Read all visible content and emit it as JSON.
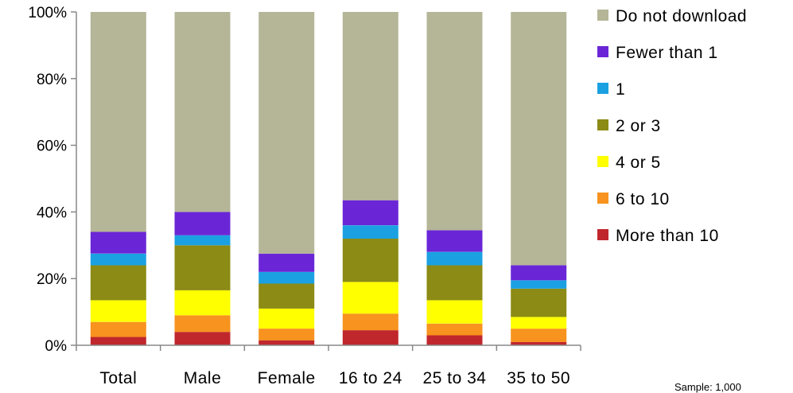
{
  "chart_data": {
    "type": "bar",
    "stacked": true,
    "percent": true,
    "categories": [
      "Total",
      "Male",
      "Female",
      "16 to 24",
      "25 to 34",
      "35 to 50"
    ],
    "y_ticks": [
      "0%",
      "20%",
      "40%",
      "60%",
      "80%",
      "100%"
    ],
    "ylim": [
      0,
      100
    ],
    "legend_position": "right",
    "series": [
      {
        "name": "More than 10",
        "color": "#c0272d",
        "values": [
          2.5,
          4,
          1.5,
          4.5,
          3,
          1
        ]
      },
      {
        "name": "6 to 10",
        "color": "#f7931e",
        "values": [
          4.5,
          5,
          3.5,
          5,
          3.5,
          4
        ]
      },
      {
        "name": "4 or 5",
        "color": "#ffff00",
        "values": [
          6.5,
          7.5,
          6,
          9.5,
          7,
          3.5
        ]
      },
      {
        "name": "2 or 3",
        "color": "#8b8b15",
        "values": [
          10.5,
          13.5,
          7.5,
          13,
          10.5,
          8.5
        ]
      },
      {
        "name": "1",
        "color": "#1ba1e2",
        "values": [
          3.5,
          3,
          3.5,
          4,
          4,
          2.5
        ]
      },
      {
        "name": "Fewer than 1",
        "color": "#6a26d6",
        "values": [
          6.5,
          7,
          5.5,
          7.5,
          6.5,
          4.5
        ]
      },
      {
        "name": "Do not download",
        "color": "#b5b598",
        "values": [
          66,
          60,
          72.5,
          56.5,
          65.5,
          76
        ]
      }
    ]
  },
  "footnote": "Sample: 1,000"
}
